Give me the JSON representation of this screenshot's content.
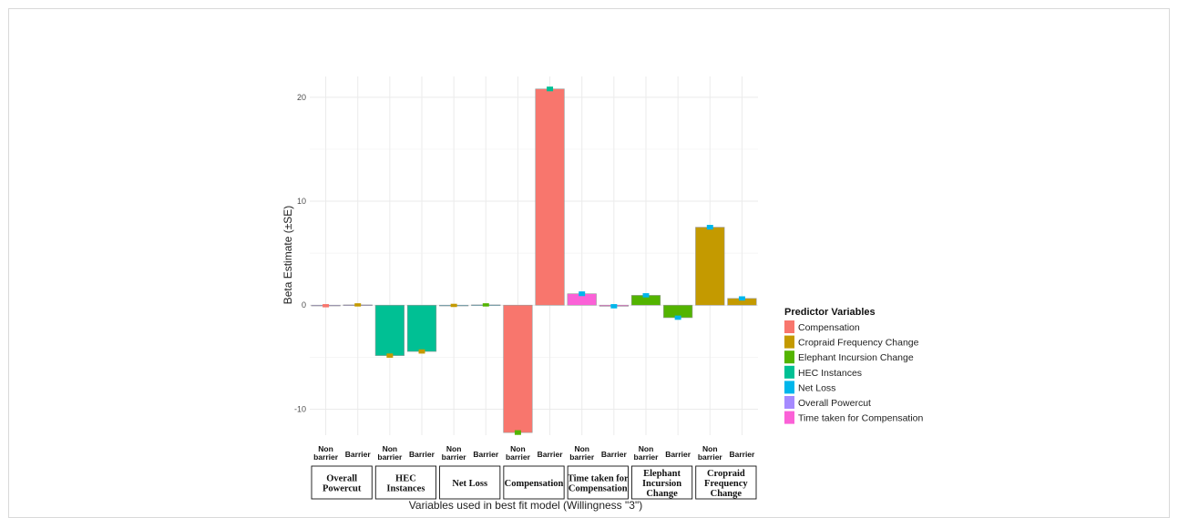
{
  "chart_data": {
    "type": "bar",
    "ylabel": "Beta Estimate (±SE)",
    "xlabel": "Variables used in best fit model (Willingness \"3\")",
    "ylim": [
      -12.5,
      22
    ],
    "yticks": [
      -10,
      0,
      10,
      20
    ],
    "grid": true,
    "legend_placement": "right",
    "legend_title": "Predictor Variables",
    "subcategories": [
      "Non\nbarrier",
      "Barrier"
    ],
    "groups": [
      {
        "label": "Overall\nPowercut",
        "series": "Overall Powercut",
        "values": [
          -0.05,
          0.03
        ],
        "se": [
          0.05,
          0.05
        ],
        "err_colors": [
          "#F8766D",
          "#C49A00"
        ]
      },
      {
        "label": "HEC\nInstances",
        "series": "HEC Instances",
        "values": [
          -4.85,
          -4.45
        ],
        "se": [
          0.1,
          0.1
        ],
        "err_colors": [
          "#C49A00",
          "#C49A00"
        ]
      },
      {
        "label": "Net Loss",
        "series": "Net Loss",
        "values": [
          -0.02,
          0.03
        ],
        "se": [
          0.05,
          0.05
        ],
        "err_colors": [
          "#C49A00",
          "#53B400"
        ]
      },
      {
        "label": "Compensation",
        "series": "Compensation",
        "values": [
          -12.25,
          20.8
        ],
        "se": [
          0.12,
          0.12
        ],
        "err_colors": [
          "#53B400",
          "#00C094"
        ]
      },
      {
        "label": "Time taken for\nCompensation",
        "series": "Time taken for Compensation",
        "values": [
          1.1,
          -0.1
        ],
        "se": [
          0.12,
          0.1
        ],
        "err_colors": [
          "#00B6EB",
          "#00B6EB"
        ]
      },
      {
        "label": "Elephant\nIncursion\nChange",
        "series": "Elephant Incursion Change",
        "values": [
          0.95,
          -1.2
        ],
        "se": [
          0.1,
          0.1
        ],
        "err_colors": [
          "#00B6EB",
          "#00B6EB"
        ]
      },
      {
        "label": "Cropraid\nFrequency\nChange",
        "series": "Cropraid Frequency Change",
        "values": [
          7.5,
          0.65
        ],
        "se": [
          0.12,
          0.1
        ],
        "err_colors": [
          "#00B6EB",
          "#00B6EB"
        ]
      }
    ],
    "series": [
      {
        "name": "Compensation",
        "color": "#F8766D"
      },
      {
        "name": "Cropraid Frequency Change",
        "color": "#C49A00"
      },
      {
        "name": "Elephant Incursion Change",
        "color": "#53B400"
      },
      {
        "name": "HEC Instances",
        "color": "#00C094"
      },
      {
        "name": "Net Loss",
        "color": "#00B6EB"
      },
      {
        "name": "Overall Powercut",
        "color": "#A58AFF"
      },
      {
        "name": "Time taken for Compensation",
        "color": "#FB61D7"
      }
    ]
  }
}
